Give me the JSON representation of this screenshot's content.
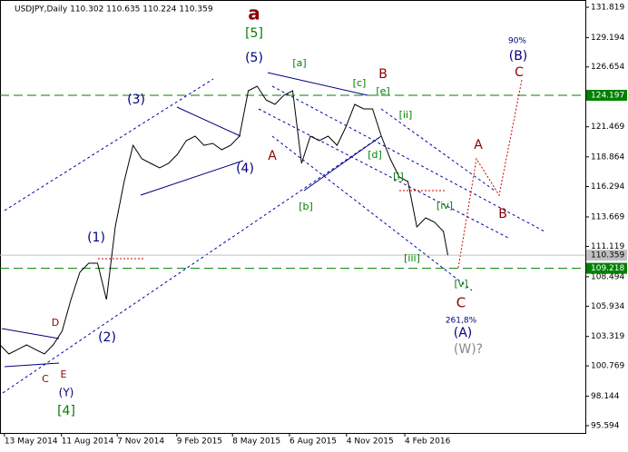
{
  "chart_data": {
    "type": "line",
    "title": "USDJPY,Daily  110.302 110.635 110.224 110.359",
    "x": [
      "2014-05-06",
      "2014-05-20",
      "2014-06-03",
      "2014-06-17",
      "2014-07-01",
      "2014-07-15",
      "2014-07-29",
      "2014-08-12",
      "2014-08-26",
      "2014-09-09",
      "2014-09-23",
      "2014-10-07",
      "2014-10-21",
      "2014-11-04",
      "2014-11-18",
      "2014-12-02",
      "2014-12-16",
      "2014-12-30",
      "2015-01-13",
      "2015-01-27",
      "2015-02-10",
      "2015-02-24",
      "2015-03-10",
      "2015-03-24",
      "2015-04-07",
      "2015-04-21",
      "2015-05-05",
      "2015-05-19",
      "2015-06-02",
      "2015-06-16",
      "2015-06-30",
      "2015-07-14",
      "2015-07-28",
      "2015-08-11",
      "2015-08-25",
      "2015-09-08",
      "2015-09-22",
      "2015-10-06",
      "2015-10-20",
      "2015-11-03",
      "2015-11-17",
      "2015-12-01",
      "2015-12-15",
      "2015-12-29",
      "2016-01-12",
      "2016-01-26",
      "2016-02-09",
      "2016-02-23",
      "2016-03-08",
      "2016-03-22",
      "2016-04-05",
      "2016-04-12"
    ],
    "series": [
      {
        "name": "USDJPY",
        "color": "#000000",
        "values": [
          102.59,
          101.8,
          102.19,
          102.59,
          102.19,
          101.8,
          102.59,
          103.77,
          106.52,
          108.87,
          109.66,
          109.66,
          106.52,
          112.8,
          116.73,
          119.87,
          118.7,
          118.3,
          117.91,
          118.3,
          119.09,
          120.27,
          120.66,
          119.87,
          120.03,
          119.48,
          119.87,
          120.66,
          124.59,
          124.98,
          123.8,
          123.41,
          124.2,
          124.59,
          118.3,
          120.66,
          120.27,
          120.66,
          119.87,
          121.45,
          123.41,
          123.02,
          123.02,
          120.66,
          118.7,
          117.13,
          116.73,
          112.8,
          113.59,
          113.2,
          112.41,
          110.359
        ]
      }
    ],
    "xlim": [
      "2014-05-06",
      "2016-11-15"
    ],
    "xticks": [
      {
        "value": "2014-05-13",
        "label": "13 May 2014"
      },
      {
        "value": "2014-08-11",
        "label": "11 Aug 2014"
      },
      {
        "value": "2014-11-07",
        "label": "7 Nov 2014"
      },
      {
        "value": "2015-02-09",
        "label": "9 Feb 2015"
      },
      {
        "value": "2015-05-08",
        "label": "8 May 2015"
      },
      {
        "value": "2015-08-06",
        "label": "6 Aug 2015"
      },
      {
        "value": "2015-11-04",
        "label": "4 Nov 2015"
      },
      {
        "value": "2016-02-04",
        "label": "4 Feb 2016"
      }
    ],
    "ylim": [
      94.965,
      132.448
    ],
    "yticks": [
      131.819,
      129.194,
      126.654,
      121.469,
      118.864,
      116.294,
      113.669,
      111.119,
      108.494,
      105.934,
      103.319,
      100.769,
      98.144,
      95.594
    ],
    "levels": [
      {
        "value": 124.197,
        "color": "#008000"
      },
      {
        "value": 110.359,
        "color": "#c0c0c0"
      },
      {
        "value": 109.218,
        "color": "#008000"
      }
    ],
    "annotations": [
      "a",
      "[5]",
      "(5)",
      "(3)",
      "(4)",
      "(1)",
      "(2)",
      "A",
      "[a]",
      "[b]",
      "[c]",
      "B",
      "[e]",
      "[d]",
      "[ii]",
      "[i]",
      "[iv]",
      "[iii]",
      "[v]",
      "C",
      "261,8%",
      "(A)",
      "(W)?",
      "90%",
      "(B)",
      "C",
      "A",
      "B",
      "D",
      "E",
      "C",
      "(Y)",
      "[4]"
    ]
  }
}
